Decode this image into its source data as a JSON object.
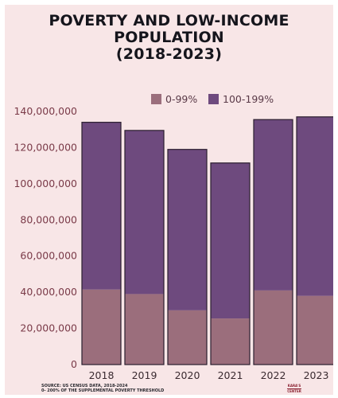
{
  "title_lines": [
    "POVERTY AND LOW-INCOME",
    "POPULATION",
    "(2018-2023)"
  ],
  "footnote_lines": [
    "SOURCE: US CENSUS DATA, 2018-2024",
    "0- 200% OF THE SUPPLEMENTAL POVERTY THRESHOLD"
  ],
  "logo_lines": [
    "KARA'S",
    "CENTER"
  ],
  "chart_data": {
    "type": "bar",
    "stacked": true,
    "title": "POVERTY AND LOW-INCOME POPULATION (2018-2023)",
    "categories": [
      "2018",
      "2019",
      "2020",
      "2021",
      "2022",
      "2023"
    ],
    "series": [
      {
        "name": "0-99%",
        "color": "#9b6e7c",
        "values": [
          41500000,
          39000000,
          30000000,
          25500000,
          41000000,
          38000000
        ]
      },
      {
        "name": "100-199%",
        "color": "#6e4a7e",
        "values": [
          92500000,
          90500000,
          89000000,
          86000000,
          94500000,
          99000000
        ]
      }
    ],
    "ylim": [
      0,
      140000000
    ],
    "yticks": [
      0,
      20000000,
      40000000,
      60000000,
      80000000,
      100000000,
      120000000,
      140000000
    ],
    "ytick_labels": [
      "0",
      "20,000,000",
      "40,000,000",
      "60,000,000",
      "80,000,000",
      "100,000,000",
      "120,000,000",
      "140,000,000"
    ],
    "legend_position": "top-right",
    "grid": false
  }
}
